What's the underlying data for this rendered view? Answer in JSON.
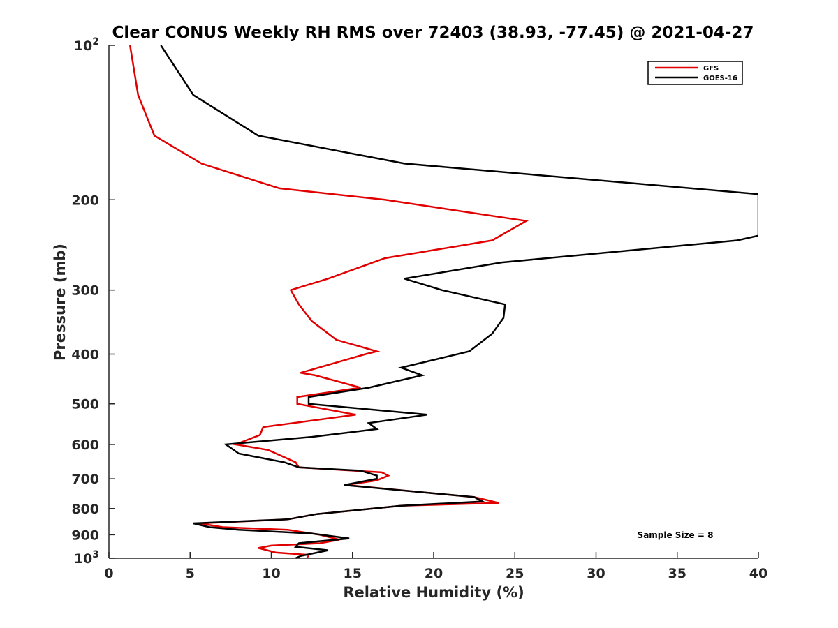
{
  "chart_data": {
    "type": "line",
    "title": "Clear CONUS Weekly RH RMS over 72403 (38.93, -77.45) @ 2021-04-27",
    "xlabel": "Relative Humidity (%)",
    "ylabel": "Pressure (mb)",
    "xlim": [
      0,
      40
    ],
    "ylim": [
      100,
      1000
    ],
    "y_scale": "log",
    "y_reversed": true,
    "x_ticks": [
      0,
      5,
      10,
      15,
      20,
      25,
      30,
      35,
      40
    ],
    "x_tick_labels": [
      "0",
      "5",
      "10",
      "15",
      "20",
      "25",
      "30",
      "35",
      "40"
    ],
    "y_ticks": [
      200,
      300,
      400,
      500,
      600,
      700,
      800,
      900
    ],
    "y_tick_labels": [
      "200",
      "300",
      "400",
      "500",
      "600",
      "700",
      "800",
      "900"
    ],
    "y_ticks_power": [
      {
        "value": 100,
        "base": "10",
        "exp": "2"
      },
      {
        "value": 1000,
        "base": "10",
        "exp": "3"
      }
    ],
    "grid": false,
    "legend_position": "top-right",
    "annotation": "Sample Size = 8",
    "series": [
      {
        "name": "GFS",
        "color": "#e00000",
        "points": [
          [
            1.3,
            100
          ],
          [
            1.8,
            125
          ],
          [
            2.8,
            150
          ],
          [
            5.7,
            170
          ],
          [
            10.5,
            190
          ],
          [
            17,
            200
          ],
          [
            25.7,
            220
          ],
          [
            23.6,
            240
          ],
          [
            17,
            260
          ],
          [
            13.5,
            285
          ],
          [
            11.2,
            300
          ],
          [
            11.7,
            320
          ],
          [
            12.5,
            345
          ],
          [
            14,
            375
          ],
          [
            16.5,
            395
          ],
          [
            15.8,
            400
          ],
          [
            11.8,
            435
          ],
          [
            12.7,
            440
          ],
          [
            15.5,
            465
          ],
          [
            11.6,
            485
          ],
          [
            11.6,
            500
          ],
          [
            15.2,
            525
          ],
          [
            9.5,
            555
          ],
          [
            9.3,
            575
          ],
          [
            7.8,
            600
          ],
          [
            9.8,
            615
          ],
          [
            11.5,
            650
          ],
          [
            11.7,
            665
          ],
          [
            16.8,
            680
          ],
          [
            17.2,
            690
          ],
          [
            16.5,
            705
          ],
          [
            14.6,
            720
          ],
          [
            22.5,
            760
          ],
          [
            24,
            780
          ],
          [
            18,
            790
          ],
          [
            12.8,
            820
          ],
          [
            11,
            840
          ],
          [
            5.6,
            855
          ],
          [
            7,
            870
          ],
          [
            11,
            880
          ],
          [
            13,
            900
          ],
          [
            14.2,
            920
          ],
          [
            13,
            935
          ],
          [
            10,
            945
          ],
          [
            9.2,
            955
          ],
          [
            10.3,
            975
          ],
          [
            12.3,
            985
          ],
          [
            12.2,
            1000
          ]
        ]
      },
      {
        "name": "GOES-16",
        "color": "#000000",
        "points": [
          [
            3.2,
            100
          ],
          [
            5.2,
            125
          ],
          [
            9.2,
            150
          ],
          [
            18.2,
            170
          ],
          [
            40,
            195
          ],
          [
            40,
            235
          ],
          [
            38.7,
            240
          ],
          [
            24.2,
            265
          ],
          [
            18.2,
            285
          ],
          [
            20.5,
            300
          ],
          [
            24.4,
            320
          ],
          [
            24.3,
            340
          ],
          [
            23.6,
            365
          ],
          [
            22.2,
            395
          ],
          [
            18,
            425
          ],
          [
            19.3,
            440
          ],
          [
            16,
            465
          ],
          [
            12.3,
            485
          ],
          [
            12.3,
            500
          ],
          [
            19.6,
            525
          ],
          [
            16,
            545
          ],
          [
            16.5,
            560
          ],
          [
            12.5,
            580
          ],
          [
            7.2,
            600
          ],
          [
            8,
            625
          ],
          [
            10.8,
            650
          ],
          [
            11.7,
            665
          ],
          [
            15.5,
            675
          ],
          [
            16.5,
            690
          ],
          [
            16.5,
            700
          ],
          [
            14.5,
            720
          ],
          [
            22.5,
            760
          ],
          [
            23,
            775
          ],
          [
            18,
            790
          ],
          [
            12.8,
            820
          ],
          [
            11,
            840
          ],
          [
            5.2,
            855
          ],
          [
            6.2,
            870
          ],
          [
            8,
            880
          ],
          [
            12.5,
            895
          ],
          [
            14.8,
            915
          ],
          [
            11.7,
            935
          ],
          [
            11.5,
            950
          ],
          [
            13.5,
            965
          ],
          [
            11.8,
            990
          ],
          [
            11.5,
            1000
          ]
        ]
      }
    ]
  }
}
